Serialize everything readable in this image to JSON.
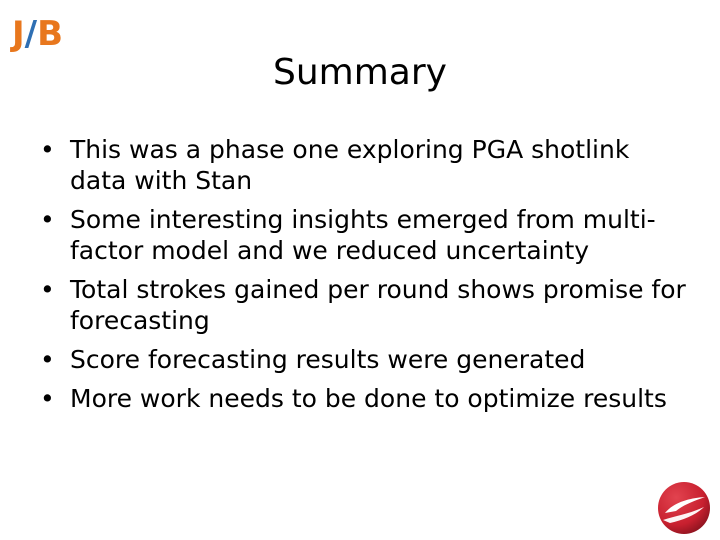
{
  "logo": {
    "j": "J",
    "slash": "/",
    "b": "B"
  },
  "slide": {
    "title": "Summary",
    "bullets": [
      "This was a phase one exploring PGA shotlink data with Stan",
      "Some interesting insights emerged from multi-factor model and we reduced uncertainty",
      "Total strokes gained per round shows promise for forecasting",
      "Score forecasting results were generated",
      "More work needs to be done to optimize results"
    ]
  },
  "colors": {
    "logo_orange": "#e8771d",
    "logo_blue": "#2f6fb3",
    "corner_red": "#c8202f"
  },
  "icons": {
    "corner_logo": "red-swoosh-logo-icon",
    "bullet": "bullet-dot-icon"
  }
}
